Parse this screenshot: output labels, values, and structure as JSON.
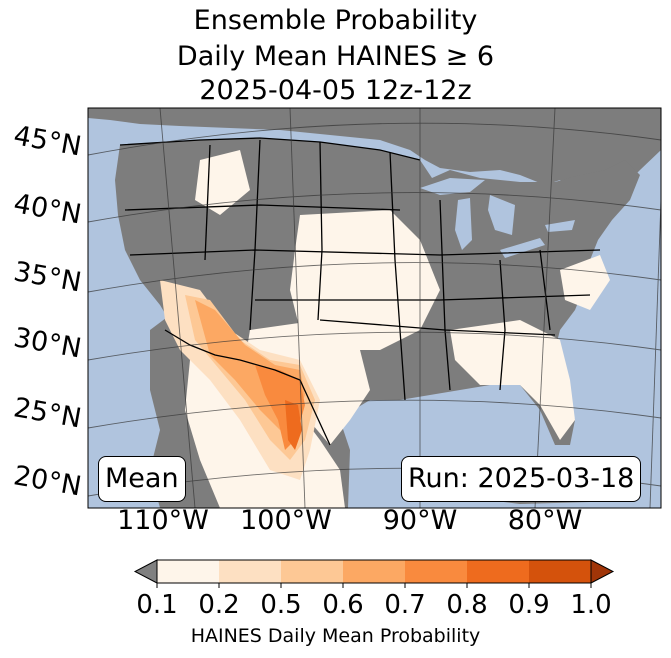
{
  "title": {
    "line1": "Ensemble Probability",
    "line2": "Daily Mean HAINES ≥ 6",
    "line3": "2025-04-05 12z-12z"
  },
  "lat_labels": [
    "45°N",
    "40°N",
    "35°N",
    "30°N",
    "25°N",
    "20°N"
  ],
  "lon_labels": [
    "110°W",
    "100°W",
    "90°W",
    "80°W"
  ],
  "left_box": "Mean",
  "right_box": "Run: 2025-03-18",
  "colorbar": {
    "ticks": [
      "0.1",
      "0.2",
      "0.5",
      "0.6",
      "0.7",
      "0.8",
      "0.9",
      "1.0"
    ],
    "colors": [
      "#fef5ea",
      "#fde0c2",
      "#fdc895",
      "#fca863",
      "#f98a3e",
      "#ee6b1e",
      "#d4520c"
    ],
    "under_color": "#808080",
    "over_color": "#a03508",
    "label": "HAINES Daily Mean Probability"
  },
  "colors": {
    "ocean": "#b0c4de",
    "land_low": "#7d7d7d"
  }
}
